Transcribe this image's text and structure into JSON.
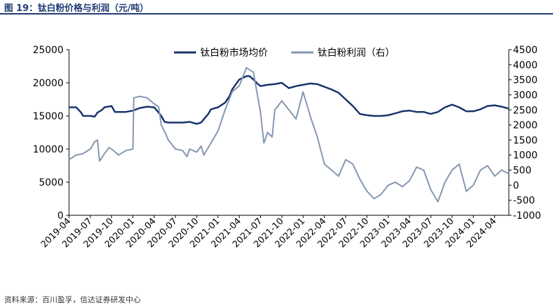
{
  "figure": {
    "title": "图 19：钛白粉价格与利润（元/吨）",
    "source": "资料来源：百川盈孚，信达证券研发中心"
  },
  "colors": {
    "price": "#17336b",
    "profit": "#8496b0",
    "axis": "#000000"
  },
  "chart_data": {
    "type": "line",
    "title": "钛白粉价格与利润（元/吨）",
    "xlabel": "",
    "ylabel": "",
    "x_ticks": [
      "2019-04",
      "2019-07",
      "2019-10",
      "2020-01",
      "2020-04",
      "2020-07",
      "2020-10",
      "2021-01",
      "2021-04",
      "2021-07",
      "2021-10",
      "2022-01",
      "2022-04",
      "2022-07",
      "2022-10",
      "2023-01",
      "2023-04",
      "2023-07",
      "2023-10",
      "2024-01",
      "2024-04"
    ],
    "xlim": [
      "2019-04",
      "2024-06"
    ],
    "y_left": {
      "min": 0,
      "max": 25000,
      "ticks": [
        "0",
        "5000",
        "10000",
        "15000",
        "20000",
        "25000"
      ]
    },
    "y_right": {
      "min": -1000,
      "max": 4500,
      "ticks": [
        "-1000",
        "-500",
        "0",
        "500",
        "1000",
        "1500",
        "2000",
        "2500",
        "3000",
        "3500",
        "4000",
        "4500"
      ]
    },
    "legend_placement": "top-center",
    "grid": false,
    "series": [
      {
        "name": "钛白粉市场均价",
        "axis": "left",
        "points": [
          [
            "2019-04",
            16300
          ],
          [
            "2019-05",
            16300
          ],
          [
            "2019-05-20",
            15600
          ],
          [
            "2019-06",
            15000
          ],
          [
            "2019-07",
            15000
          ],
          [
            "2019-07-20",
            14900
          ],
          [
            "2019-08",
            15500
          ],
          [
            "2019-08-20",
            15900
          ],
          [
            "2019-09",
            16300
          ],
          [
            "2019-10",
            16500
          ],
          [
            "2019-10-15",
            15600
          ],
          [
            "2019-11",
            15600
          ],
          [
            "2019-12",
            15600
          ],
          [
            "2020-01",
            15800
          ],
          [
            "2020-02",
            16200
          ],
          [
            "2020-03",
            16400
          ],
          [
            "2020-04",
            16300
          ],
          [
            "2020-04-20",
            15500
          ],
          [
            "2020-05",
            15000
          ],
          [
            "2020-05-15",
            14100
          ],
          [
            "2020-06",
            14000
          ],
          [
            "2020-07",
            14000
          ],
          [
            "2020-08",
            14000
          ],
          [
            "2020-09",
            14100
          ],
          [
            "2020-10",
            13800
          ],
          [
            "2020-10-20",
            14000
          ],
          [
            "2020-11",
            14500
          ],
          [
            "2020-11-20",
            15300
          ],
          [
            "2020-12",
            16000
          ],
          [
            "2021-01",
            16300
          ],
          [
            "2021-02",
            17000
          ],
          [
            "2021-02-20",
            18000
          ],
          [
            "2021-03",
            19000
          ],
          [
            "2021-04",
            20500
          ],
          [
            "2021-05",
            21000
          ],
          [
            "2021-05-15",
            21000
          ],
          [
            "2021-06",
            20500
          ],
          [
            "2021-06-20",
            19800
          ],
          [
            "2021-07",
            19500
          ],
          [
            "2021-08",
            19700
          ],
          [
            "2021-09",
            19800
          ],
          [
            "2021-10",
            20000
          ],
          [
            "2021-11",
            19200
          ],
          [
            "2021-12",
            19500
          ],
          [
            "2022-01",
            19700
          ],
          [
            "2022-02",
            19900
          ],
          [
            "2022-03",
            19800
          ],
          [
            "2022-04",
            19400
          ],
          [
            "2022-05",
            19000
          ],
          [
            "2022-06",
            18500
          ],
          [
            "2022-07",
            17500
          ],
          [
            "2022-08",
            16500
          ],
          [
            "2022-09",
            15300
          ],
          [
            "2022-10",
            15100
          ],
          [
            "2022-11",
            15000
          ],
          [
            "2022-12",
            15000
          ],
          [
            "2023-01",
            15100
          ],
          [
            "2023-02",
            15400
          ],
          [
            "2023-03",
            15700
          ],
          [
            "2023-04",
            15800
          ],
          [
            "2023-05",
            15600
          ],
          [
            "2023-06",
            15600
          ],
          [
            "2023-07",
            15300
          ],
          [
            "2023-08",
            15600
          ],
          [
            "2023-09",
            16300
          ],
          [
            "2023-10",
            16700
          ],
          [
            "2023-11",
            16300
          ],
          [
            "2023-12",
            15700
          ],
          [
            "2024-01",
            15700
          ],
          [
            "2024-02",
            16000
          ],
          [
            "2024-03",
            16500
          ],
          [
            "2024-04",
            16600
          ],
          [
            "2024-05",
            16400
          ],
          [
            "2024-06",
            16100
          ]
        ]
      },
      {
        "name": "钛白粉利润（右）",
        "axis": "right",
        "points": [
          [
            "2019-04",
            850
          ],
          [
            "2019-05",
            1000
          ],
          [
            "2019-06",
            1050
          ],
          [
            "2019-07",
            1200
          ],
          [
            "2019-07-20",
            1450
          ],
          [
            "2019-08",
            1500
          ],
          [
            "2019-08-10",
            800
          ],
          [
            "2019-09",
            1050
          ],
          [
            "2019-09-20",
            1250
          ],
          [
            "2019-10",
            1200
          ],
          [
            "2019-11",
            1000
          ],
          [
            "2019-12",
            1150
          ],
          [
            "2020-01",
            1200
          ],
          [
            "2020-01-05",
            2900
          ],
          [
            "2020-02",
            2950
          ],
          [
            "2020-03",
            2900
          ],
          [
            "2020-04",
            2700
          ],
          [
            "2020-04-20",
            2600
          ],
          [
            "2020-05",
            2000
          ],
          [
            "2020-05-20",
            1700
          ],
          [
            "2020-06",
            1500
          ],
          [
            "2020-07",
            1200
          ],
          [
            "2020-08",
            1150
          ],
          [
            "2020-08-20",
            950
          ],
          [
            "2020-09",
            1200
          ],
          [
            "2020-10",
            1100
          ],
          [
            "2020-10-20",
            1300
          ],
          [
            "2020-11",
            1000
          ],
          [
            "2020-12",
            1400
          ],
          [
            "2021-01",
            1800
          ],
          [
            "2021-02",
            2500
          ],
          [
            "2021-03",
            3100
          ],
          [
            "2021-04",
            3300
          ],
          [
            "2021-05",
            3900
          ],
          [
            "2021-06",
            3750
          ],
          [
            "2021-06-20",
            2900
          ],
          [
            "2021-07",
            2400
          ],
          [
            "2021-07-15",
            1400
          ],
          [
            "2021-08",
            1750
          ],
          [
            "2021-08-20",
            1600
          ],
          [
            "2021-09",
            2500
          ],
          [
            "2021-10",
            2800
          ],
          [
            "2021-11",
            2500
          ],
          [
            "2021-12",
            2200
          ],
          [
            "2022-01",
            3100
          ],
          [
            "2022-02",
            2300
          ],
          [
            "2022-03",
            1600
          ],
          [
            "2022-04",
            700
          ],
          [
            "2022-05",
            500
          ],
          [
            "2022-06",
            300
          ],
          [
            "2022-07",
            850
          ],
          [
            "2022-08",
            700
          ],
          [
            "2022-09",
            200
          ],
          [
            "2022-10",
            -200
          ],
          [
            "2022-11",
            -450
          ],
          [
            "2022-12",
            -300
          ],
          [
            "2023-01",
            0
          ],
          [
            "2023-02",
            100
          ],
          [
            "2023-03",
            -50
          ],
          [
            "2023-04",
            150
          ],
          [
            "2023-05",
            600
          ],
          [
            "2023-06",
            500
          ],
          [
            "2023-07",
            -150
          ],
          [
            "2023-08",
            -550
          ],
          [
            "2023-09",
            100
          ],
          [
            "2023-10",
            500
          ],
          [
            "2023-11",
            700
          ],
          [
            "2023-12",
            -200
          ],
          [
            "2024-01",
            0
          ],
          [
            "2024-02",
            500
          ],
          [
            "2024-03",
            650
          ],
          [
            "2024-04",
            300
          ],
          [
            "2024-05",
            500
          ],
          [
            "2024-06",
            380
          ]
        ]
      }
    ]
  }
}
